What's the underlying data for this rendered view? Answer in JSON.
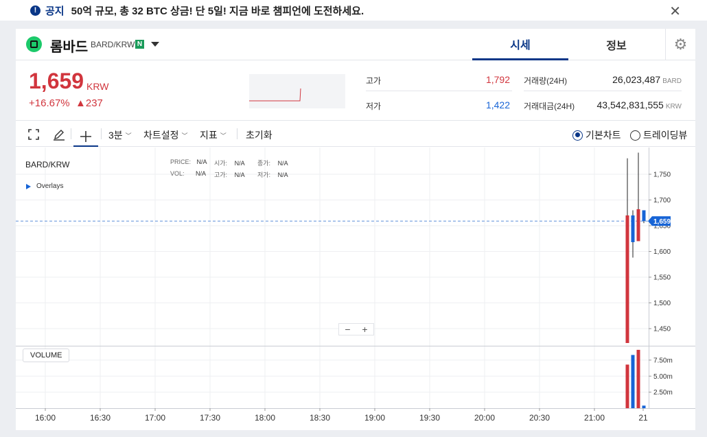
{
  "notice": {
    "icon": "info-icon",
    "tag": "공지",
    "text": "50억 규모, 총 32 BTC 상금! 단 5일! 지금 바로 챔피언에 도전하세요.",
    "close_icon": "close-icon"
  },
  "header": {
    "coin_name": "롬바드",
    "pair": "BARD/KRW",
    "badge": "N",
    "tabs": [
      {
        "label": "시세",
        "active": true
      },
      {
        "label": "정보",
        "active": false
      }
    ],
    "settings_icon": "gear-icon"
  },
  "price": {
    "current": "1,659",
    "unit": "KRW",
    "change_pct": "+16.67%",
    "change_amt": "▲237",
    "high_label": "고가",
    "high": "1,792",
    "low_label": "저가",
    "low": "1,422",
    "vol_label": "거래량(24H)",
    "vol": "26,023,487",
    "vol_unit": "BARD",
    "amt_label": "거래대금(24H)",
    "amt": "43,542,831,555",
    "amt_unit": "KRW"
  },
  "toolbar": {
    "interval": "3분",
    "chart_settings": "차트설정",
    "indicators": "지표",
    "reset": "초기화",
    "basic_chart": "기본차트",
    "trading_view": "트레이딩뷰",
    "basic_selected": true
  },
  "chart": {
    "pair_label": "BARD/KRW",
    "overlays": "Overlays",
    "ohlc": {
      "price_l": "PRICE:",
      "price": "N/A",
      "open_l": "시가:",
      "open": "N/A",
      "close_l": "종가:",
      "close": "N/A",
      "vol_l": "VOL:",
      "vol": "N/A",
      "high_l": "고가:",
      "high": "N/A",
      "low_l": "저가:",
      "low": "N/A"
    },
    "volume_label": "VOLUME",
    "zoom_minus": "−",
    "zoom_plus": "+",
    "current_price_tag": "1,659"
  },
  "chart_data": {
    "type": "candlestick",
    "price_ticks": [
      1750,
      1700,
      1650,
      1600,
      1550,
      1500,
      1450
    ],
    "price_tick_labels": [
      "1,750",
      "1,700",
      "1,650",
      "1,600",
      "1,550",
      "1,500",
      "1,450"
    ],
    "price_range": [
      1418,
      1792
    ],
    "current_price": 1659,
    "volume_ticks": [
      7.5,
      5.0,
      2.5
    ],
    "volume_tick_labels": [
      "7.50m",
      "5.00m",
      "2.50m"
    ],
    "volume_range": [
      0,
      9.2
    ],
    "x_tick_labels": [
      "16:00",
      "16:30",
      "17:00",
      "17:30",
      "18:00",
      "18:30",
      "19:00",
      "19:30",
      "20:00",
      "20:30",
      "21:00",
      "21"
    ],
    "candles": [
      {
        "open": 1422,
        "high": 1781,
        "low": 1422,
        "close": 1670,
        "up": true,
        "volume": 6.8
      },
      {
        "open": 1670,
        "high": 1680,
        "low": 1588,
        "close": 1618,
        "up": false,
        "volume": 8.3
      },
      {
        "open": 1620,
        "high": 1792,
        "low": 1620,
        "close": 1682,
        "up": true,
        "volume": 9.1
      },
      {
        "open": 1680,
        "high": 1680,
        "low": 1655,
        "close": 1659,
        "up": false,
        "volume": 0.4
      }
    ],
    "up_color": "#d1353d",
    "down_color": "#1764d6"
  }
}
